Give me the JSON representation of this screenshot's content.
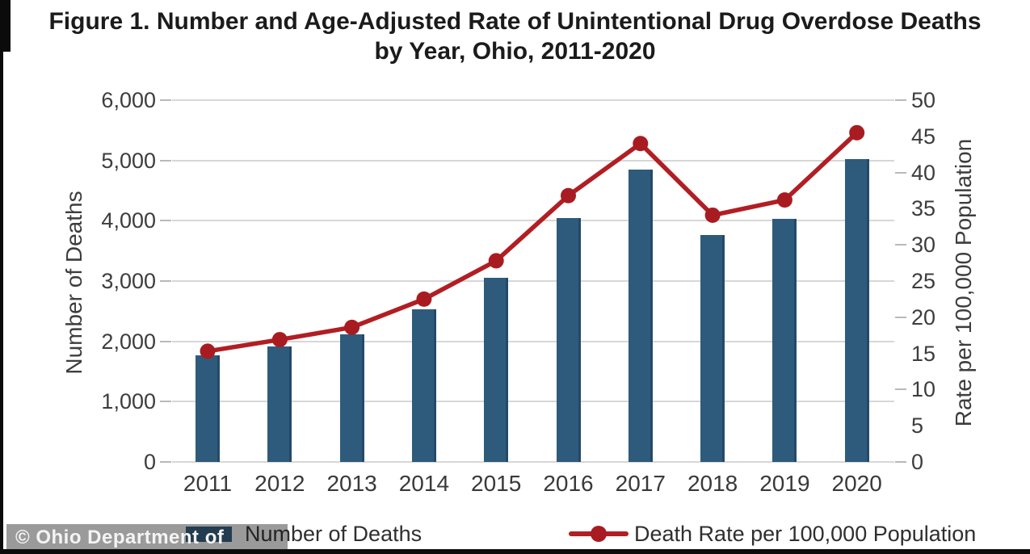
{
  "figure": {
    "title_line1": "Figure 1. Number and Age-Adjusted Rate of Unintentional Drug Overdose Deaths",
    "title_line2": "by Year, Ohio, 2011-2020",
    "watermark": "© Ohio Department of Health"
  },
  "colors": {
    "bar": "#2e5b7c",
    "line": "#b11e23",
    "point": "#a81c21",
    "grid": "#d7d7d7",
    "title_text": "#1b1b1b",
    "axis_text": "#3d3d3d",
    "watermark_text": "#f4f4f4"
  },
  "chart_data": {
    "type": "bar",
    "subtype": "combo-bar-line-dual-axis",
    "title": "Figure 1. Number and Age-Adjusted Rate of Unintentional Drug Overdose Deaths by Year, Ohio, 2011-2020",
    "categories": [
      "2011",
      "2012",
      "2013",
      "2014",
      "2015",
      "2016",
      "2017",
      "2018",
      "2019",
      "2020"
    ],
    "series": [
      {
        "name": "Number of Deaths",
        "type": "bar",
        "axis": "left",
        "color": "#2e5b7c",
        "values": [
          1772,
          1914,
          2110,
          2531,
          3050,
          4050,
          4854,
          3764,
          4028,
          5017
        ]
      },
      {
        "name": "Death Rate per 100,000 Population",
        "type": "line",
        "axis": "right",
        "color": "#b11e23",
        "values": [
          15.3,
          16.9,
          18.6,
          22.5,
          27.8,
          36.8,
          44.0,
          34.1,
          36.2,
          45.5
        ]
      }
    ],
    "left_axis": {
      "title": "Number of Deaths",
      "min": 0,
      "max": 6000,
      "tick_step": 1000,
      "tick_labels": [
        "0",
        "1,000",
        "2,000",
        "3,000",
        "4,000",
        "5,000",
        "6,000"
      ]
    },
    "right_axis": {
      "title": "Rate per 100,000 Population",
      "min": 0,
      "max": 50,
      "tick_step": 5,
      "tick_labels": [
        "0",
        "5",
        "10",
        "15",
        "20",
        "25",
        "30",
        "35",
        "40",
        "45",
        "50"
      ]
    },
    "xlabel": "",
    "ylabel": "Number of Deaths",
    "grid": "horizontal",
    "legend_position": "bottom",
    "legend": [
      {
        "label": "Number of Deaths",
        "marker": "square",
        "color": "#2e5b7c"
      },
      {
        "label": "Death Rate per 100,000 Population",
        "marker": "line-dot",
        "color": "#b11e23"
      }
    ]
  }
}
